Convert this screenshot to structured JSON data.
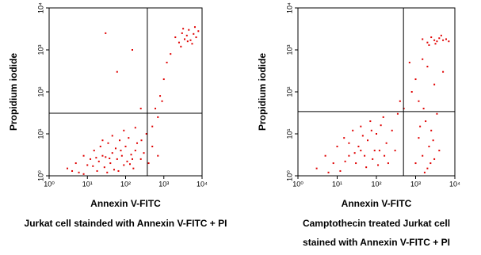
{
  "chart_data": [
    {
      "type": "scatter",
      "xlabel": "Annexin V-FITC",
      "ylabel": "Propidium iodide",
      "caption": [
        "Jurkat cell stainded with Annexin V-FITC + PI"
      ],
      "log_x": true,
      "log_y": true,
      "color": "#e00000",
      "xlim": [
        1,
        10000
      ],
      "ylim": [
        1,
        10000
      ],
      "xticks": [
        {
          "value": 1,
          "label": "10⁰"
        },
        {
          "value": 10,
          "label": "10¹"
        },
        {
          "value": 100,
          "label": "10²"
        },
        {
          "value": 1000,
          "label": "10³"
        },
        {
          "value": 10000,
          "label": "10⁴"
        }
      ],
      "yticks": [
        {
          "value": 1,
          "label": "10⁰"
        },
        {
          "value": 10,
          "label": "10¹"
        },
        {
          "value": 100,
          "label": "10²"
        },
        {
          "value": 1000,
          "label": "10³"
        },
        {
          "value": 10000,
          "label": "10⁴"
        }
      ],
      "gate_x": 370,
      "gate_y": 31,
      "x": [
        3,
        5,
        6,
        8,
        10,
        12,
        15,
        18,
        20,
        22,
        25,
        28,
        30,
        35,
        40,
        45,
        50,
        55,
        60,
        70,
        80,
        90,
        100,
        110,
        120,
        140,
        160,
        180,
        200,
        250,
        300,
        350,
        400,
        500,
        700,
        8,
        14,
        33,
        65,
        130,
        45,
        90,
        180,
        25,
        4,
        150,
        75,
        38,
        17,
        260,
        2000,
        2500,
        3000,
        3500,
        4000,
        4500,
        5000,
        6000,
        7000,
        8000,
        2800,
        5500,
        3200,
        4200,
        6500,
        500,
        600,
        800,
        1000,
        1200,
        700,
        900,
        1500,
        30,
        150,
        250,
        60
      ],
      "y": [
        1.5,
        2,
        1.2,
        3,
        1.8,
        2.5,
        4,
        1.3,
        2.2,
        5,
        3,
        1.6,
        2.8,
        6,
        2,
        3.5,
        1.4,
        4.5,
        2.5,
        7,
        3,
        1.8,
        5,
        2.2,
        8,
        3.2,
        1.5,
        4,
        6,
        2.5,
        3.5,
        10,
        2,
        5,
        3,
        1.1,
        1.7,
        1.2,
        1.3,
        1.9,
        9,
        12,
        14,
        7,
        1.3,
        2.5,
        4,
        2.6,
        2.7,
        7,
        2000,
        1500,
        2500,
        1800,
        2200,
        3000,
        1700,
        2400,
        2000,
        2800,
        1200,
        1400,
        3200,
        1600,
        3500,
        15,
        40,
        80,
        200,
        500,
        25,
        60,
        800,
        2500,
        1000,
        40,
        300
      ]
    },
    {
      "type": "scatter",
      "xlabel": "Annexin V-FITC",
      "ylabel": "Propidium iodide",
      "caption": [
        "Camptothecin treated Jurkat cell",
        "stained with Annexin V-FITC + PI"
      ],
      "log_x": true,
      "log_y": true,
      "color": "#e00000",
      "xlim": [
        1,
        10000
      ],
      "ylim": [
        1,
        10000
      ],
      "xticks": [
        {
          "value": 1,
          "label": "10⁰"
        },
        {
          "value": 10,
          "label": "10¹"
        },
        {
          "value": 100,
          "label": "10²"
        },
        {
          "value": 1000,
          "label": "10³"
        },
        {
          "value": 10000,
          "label": "10⁴"
        }
      ],
      "yticks": [
        {
          "value": 1,
          "label": "10⁰"
        },
        {
          "value": 10,
          "label": "10¹"
        },
        {
          "value": 100,
          "label": "10²"
        },
        {
          "value": 1000,
          "label": "10³"
        },
        {
          "value": 10000,
          "label": "10⁴"
        }
      ],
      "gate_x": 490,
      "gate_y": 34,
      "x": [
        3,
        5,
        8,
        10,
        12,
        15,
        20,
        25,
        30,
        35,
        40,
        50,
        60,
        70,
        80,
        100,
        120,
        150,
        180,
        200,
        250,
        300,
        350,
        20,
        45,
        90,
        6,
        16,
        28,
        55,
        110,
        160,
        75,
        130,
        40,
        1000,
        1200,
        1500,
        1800,
        2000,
        2200,
        2500,
        3000,
        3500,
        4000,
        1300,
        1700,
        2800,
        1600,
        2400,
        1500,
        2000,
        2500,
        3000,
        3500,
        4000,
        5000,
        6000,
        7000,
        2200,
        4500,
        3200,
        1000,
        1200,
        800,
        2000,
        500,
        1500,
        3000,
        700,
        5000,
        400
      ],
      "y": [
        1.5,
        3,
        2,
        5,
        1.3,
        8,
        3,
        12,
        2,
        5,
        15,
        3,
        7,
        20,
        2.5,
        10,
        4,
        25,
        6,
        2,
        12,
        4,
        30,
        6,
        9,
        4,
        1.2,
        2.2,
        3.5,
        1.6,
        1.8,
        3,
        12,
        16,
        4,
        2,
        8,
        3,
        20,
        1.5,
        5,
        12,
        2.5,
        30,
        4,
        15,
        1.2,
        7,
        40,
        2,
        1800,
        1500,
        2000,
        1700,
        1600,
        1900,
        1700,
        1800,
        1600,
        1300,
        2200,
        1400,
        200,
        60,
        100,
        400,
        40,
        600,
        150,
        500,
        300,
        60
      ]
    }
  ]
}
